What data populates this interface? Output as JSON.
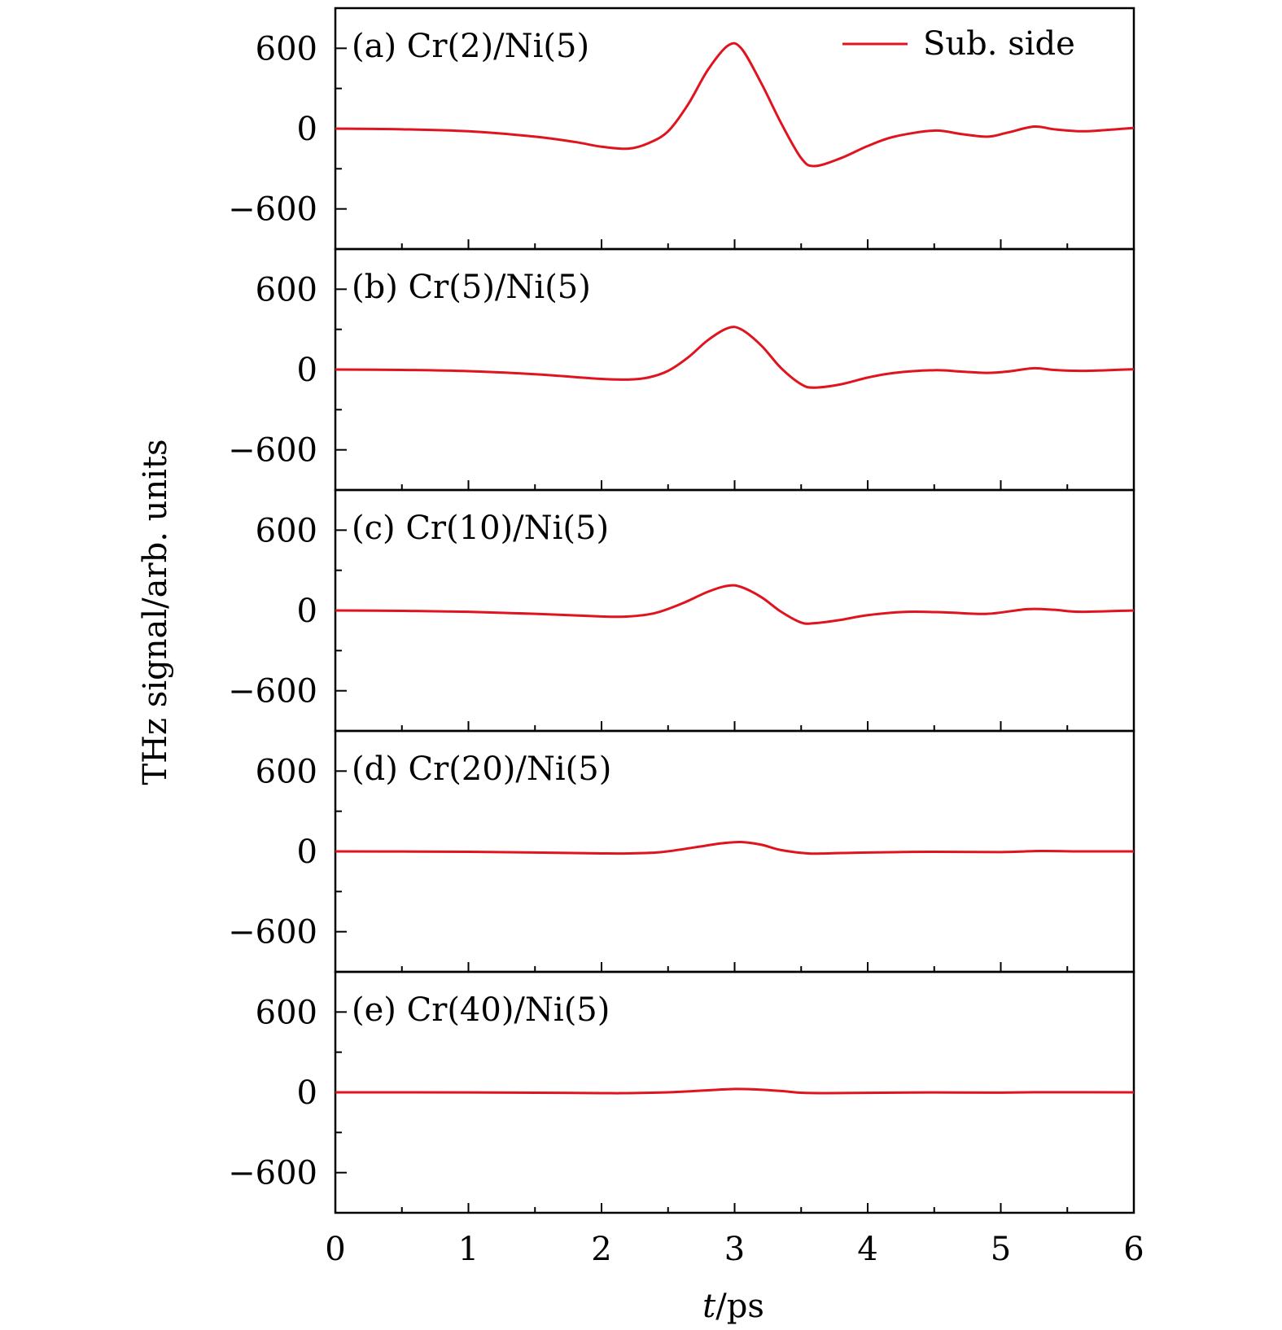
{
  "chart_data": {
    "type": "line",
    "xlabel": {
      "italic": "t",
      "rest": "/ps"
    },
    "ylabel": "THz signal/arb. units",
    "xlim": [
      0,
      6
    ],
    "ylim": [
      -900,
      900
    ],
    "x_ticks": [
      "0",
      "1",
      "2",
      "3",
      "4",
      "5",
      "6"
    ],
    "y_ticks": [
      "600",
      "0",
      "−600"
    ],
    "y_tick_values": [
      600,
      0,
      -600
    ],
    "legend": {
      "label": "Sub. side",
      "position": "top-right"
    },
    "color": "#e0141e",
    "panels": [
      {
        "label": "(a) Cr(2)/Ni(5)",
        "x": [
          0,
          0.5,
          1.0,
          1.5,
          1.8,
          2.0,
          2.2,
          2.35,
          2.5,
          2.65,
          2.8,
          2.95,
          3.05,
          3.2,
          3.35,
          3.5,
          3.6,
          3.8,
          4.0,
          4.2,
          4.5,
          4.7,
          4.9,
          5.05,
          5.25,
          5.4,
          5.6,
          5.8,
          6.0
        ],
        "y": [
          0,
          -5,
          -20,
          -60,
          -100,
          -135,
          -150,
          -110,
          -20,
          180,
          440,
          620,
          600,
          340,
          40,
          -220,
          -280,
          -220,
          -130,
          -60,
          -15,
          -40,
          -60,
          -30,
          15,
          -5,
          -20,
          -10,
          5
        ]
      },
      {
        "label": "(b) Cr(5)/Ni(5)",
        "x": [
          0,
          0.5,
          1.0,
          1.5,
          2.0,
          2.2,
          2.35,
          2.5,
          2.65,
          2.8,
          2.95,
          3.05,
          3.2,
          3.35,
          3.5,
          3.6,
          3.8,
          4.0,
          4.2,
          4.5,
          4.7,
          4.9,
          5.05,
          5.25,
          5.4,
          5.6,
          5.8,
          6.0
        ],
        "y": [
          0,
          -3,
          -12,
          -35,
          -70,
          -75,
          -60,
          -10,
          90,
          220,
          310,
          300,
          180,
          10,
          -110,
          -135,
          -110,
          -60,
          -25,
          -5,
          -15,
          -25,
          -15,
          10,
          -3,
          -10,
          -5,
          2
        ]
      },
      {
        "label": "(c) Cr(10)/Ni(5)",
        "x": [
          0,
          0.5,
          1.0,
          1.5,
          2.0,
          2.2,
          2.4,
          2.6,
          2.8,
          2.95,
          3.05,
          3.2,
          3.35,
          3.5,
          3.6,
          3.8,
          4.0,
          4.3,
          4.6,
          4.9,
          5.2,
          5.4,
          5.6,
          6.0
        ],
        "y": [
          0,
          -3,
          -10,
          -25,
          -45,
          -45,
          -20,
          50,
          140,
          185,
          175,
          100,
          -10,
          -90,
          -95,
          -70,
          -35,
          -10,
          -15,
          -25,
          10,
          5,
          -10,
          0
        ]
      },
      {
        "label": "(d) Cr(20)/Ni(5)",
        "x": [
          0,
          0.5,
          1.0,
          1.5,
          2.0,
          2.2,
          2.45,
          2.7,
          2.9,
          3.05,
          3.2,
          3.35,
          3.55,
          3.7,
          4.0,
          4.5,
          5.0,
          5.3,
          5.6,
          6.0
        ],
        "y": [
          0,
          -1,
          -3,
          -8,
          -15,
          -15,
          -5,
          30,
          60,
          70,
          50,
          10,
          -15,
          -15,
          -8,
          -3,
          -5,
          3,
          0,
          0
        ]
      },
      {
        "label": "(e) Cr(40)/Ni(5)",
        "x": [
          0,
          0.5,
          1.0,
          1.5,
          2.0,
          2.2,
          2.5,
          2.8,
          3.0,
          3.15,
          3.35,
          3.5,
          3.7,
          4.0,
          4.5,
          5.0,
          5.3,
          6.0
        ],
        "y": [
          0,
          0,
          -1,
          -3,
          -6,
          -6,
          0,
          15,
          25,
          22,
          10,
          -3,
          -6,
          -4,
          -1,
          -2,
          1,
          0
        ]
      }
    ]
  }
}
